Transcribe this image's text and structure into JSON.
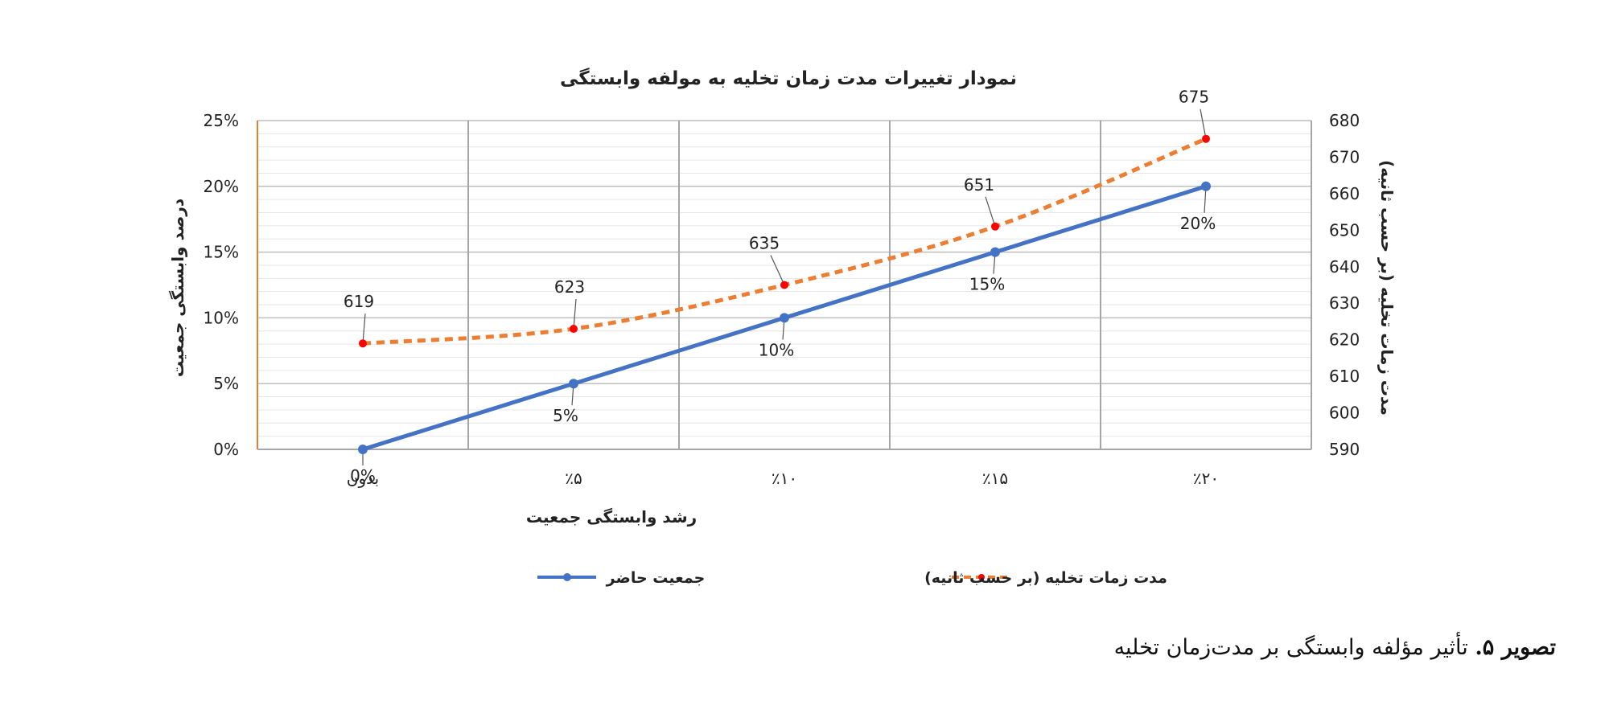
{
  "chart_data": {
    "type": "line",
    "title": "نمودار تغییرات مدت زمان تخلیه به مولفه وابستگی",
    "xlabel": "رشد وابستگی جمعیت",
    "ylabel_left": "درصد وابستگی جمعیت",
    "ylabel_right": "مدت زمات تخلیه (بر حسب ثانیه)",
    "categories": [
      "بدون",
      "٪۵",
      "٪۱۰",
      "٪۱۵",
      "٪۲۰"
    ],
    "y_left_ticks": [
      "0%",
      "5%",
      "10%",
      "15%",
      "20%",
      "25%"
    ],
    "y_left_range": [
      0,
      25
    ],
    "y_right_ticks": [
      "590",
      "600",
      "610",
      "620",
      "630",
      "640",
      "650",
      "660",
      "670",
      "680"
    ],
    "y_right_range": [
      590,
      680
    ],
    "grid": true,
    "legend_position": "bottom",
    "series": [
      {
        "name": "جمعیت حاضر",
        "axis": "left",
        "values": [
          0,
          5,
          10,
          15,
          20
        ],
        "labels": [
          "0%",
          "5%",
          "10%",
          "15%",
          "20%"
        ],
        "color": "#4472C4",
        "style": "solid"
      },
      {
        "name": "مدت زمات تخلیه (بر حسب ثانیه)",
        "axis": "right",
        "values": [
          619,
          623,
          635,
          651,
          675
        ],
        "labels": [
          "619",
          "623",
          "635",
          "651",
          "675"
        ],
        "color": "#ED7D31",
        "marker_color": "#FF0000",
        "style": "dashed"
      }
    ]
  },
  "caption": {
    "label": "تصویر ۵.",
    "text": "تأثیر مؤلفه وابستگی بر مدت‌زمان تخلیه"
  }
}
